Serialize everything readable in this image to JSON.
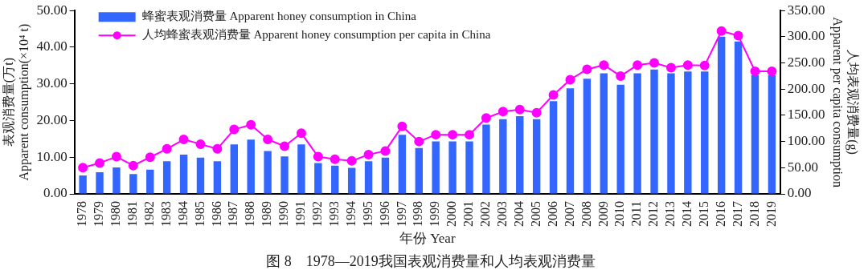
{
  "chart_data": {
    "type": "bar",
    "title": "图 8　1978—2019我国表观消费量和人均表观消费量",
    "xlabel": "年份 Year",
    "ylabel": "表观消费量(万t)\nApparent consumption(×10⁴ t)",
    "y2label": "人均表观消费量(g)\nApparent per capita consumption",
    "categories": [
      "1978",
      "1979",
      "1980",
      "1981",
      "1982",
      "1983",
      "1984",
      "1985",
      "1986",
      "1987",
      "1988",
      "1989",
      "1990",
      "1991",
      "1992",
      "1993",
      "1994",
      "1995",
      "1996",
      "1997",
      "1998",
      "1999",
      "2000",
      "2001",
      "2002",
      "2003",
      "2004",
      "2005",
      "2006",
      "2007",
      "2008",
      "2009",
      "2010",
      "2011",
      "2012",
      "2013",
      "2014",
      "2015",
      "2016",
      "2017",
      "2018",
      "2019"
    ],
    "series": [
      {
        "name": "蜂蜜表观消费量 Apparent honey consumption in China",
        "color": "#3366ff",
        "values": [
          5.0,
          5.9,
          7.2,
          5.4,
          6.6,
          8.9,
          10.7,
          9.9,
          8.9,
          13.5,
          14.8,
          11.7,
          10.2,
          13.5,
          8.4,
          7.7,
          7.1,
          8.9,
          9.9,
          16.1,
          12.5,
          14.3,
          14.3,
          14.3,
          18.9,
          20.4,
          21.2,
          20.4,
          25.3,
          28.8,
          31.4,
          32.9,
          29.8,
          32.9,
          33.9,
          32.9,
          33.4,
          33.4,
          42.9,
          41.6,
          32.4,
          32.4
        ]
      },
      {
        "name": "人均蜂蜜表观消费量 Apparent honey consumption per capita in China",
        "type": "line",
        "axis": "y2",
        "color": "#ff00ff",
        "marker": "circle",
        "values": [
          50,
          59,
          71,
          54,
          70,
          86,
          104,
          95,
          86,
          123,
          132,
          104,
          91,
          116,
          71,
          66,
          63,
          75,
          82,
          129,
          100,
          113,
          113,
          113,
          145,
          157,
          161,
          155,
          189,
          218,
          238,
          246,
          225,
          246,
          250,
          241,
          246,
          245,
          311,
          302,
          234,
          234
        ]
      }
    ],
    "ylim": [
      0,
      50
    ],
    "yticks": [
      {
        "value": 0,
        "label": "0.00"
      },
      {
        "value": 10,
        "label": "10.00"
      },
      {
        "value": 20,
        "label": "20.00"
      },
      {
        "value": 30,
        "label": "30.00"
      },
      {
        "value": 40,
        "label": "40.00"
      },
      {
        "value": 50,
        "label": "50.00"
      }
    ],
    "y2lim": [
      0,
      350
    ],
    "y2ticks": [
      {
        "value": 0,
        "label": "0.00"
      },
      {
        "value": 50,
        "label": "50.00"
      },
      {
        "value": 100,
        "label": "100.00"
      },
      {
        "value": 150,
        "label": "150.00"
      },
      {
        "value": 200,
        "label": "200.00"
      },
      {
        "value": 250,
        "label": "250.00"
      },
      {
        "value": 300,
        "label": "300.00"
      },
      {
        "value": 350,
        "label": "350.00"
      }
    ],
    "grid": false,
    "legend": "top left"
  }
}
